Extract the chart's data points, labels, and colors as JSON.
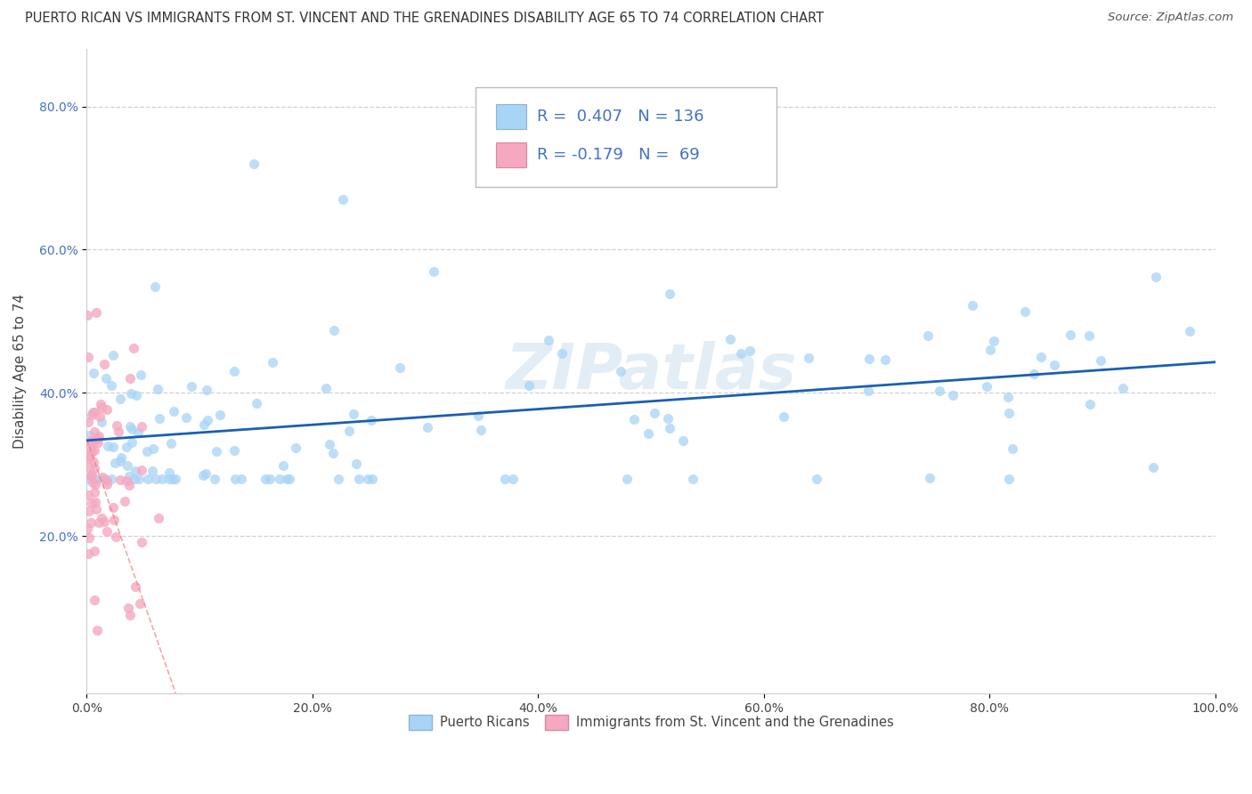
{
  "title": "PUERTO RICAN VS IMMIGRANTS FROM ST. VINCENT AND THE GRENADINES DISABILITY AGE 65 TO 74 CORRELATION CHART",
  "source": "Source: ZipAtlas.com",
  "ylabel": "Disability Age 65 to 74",
  "xlabel": "",
  "xlim": [
    0.0,
    1.0
  ],
  "ylim": [
    -0.02,
    0.88
  ],
  "xtick_positions": [
    0.0,
    0.2,
    0.4,
    0.6,
    0.8,
    1.0
  ],
  "ytick_positions": [
    0.2,
    0.4,
    0.6,
    0.8
  ],
  "r_blue": 0.407,
  "n_blue": 136,
  "r_pink": -0.179,
  "n_pink": 69,
  "blue_color": "#a8d4f5",
  "pink_color": "#f5a8c0",
  "blue_line_color": "#1a5fb4",
  "pink_line_color": "#f08080",
  "legend_label_blue": "Puerto Ricans",
  "legend_label_pink": "Immigrants from St. Vincent and the Grenadines",
  "watermark": "ZIPatlas",
  "background_color": "#ffffff",
  "grid_color": "#cccccc"
}
